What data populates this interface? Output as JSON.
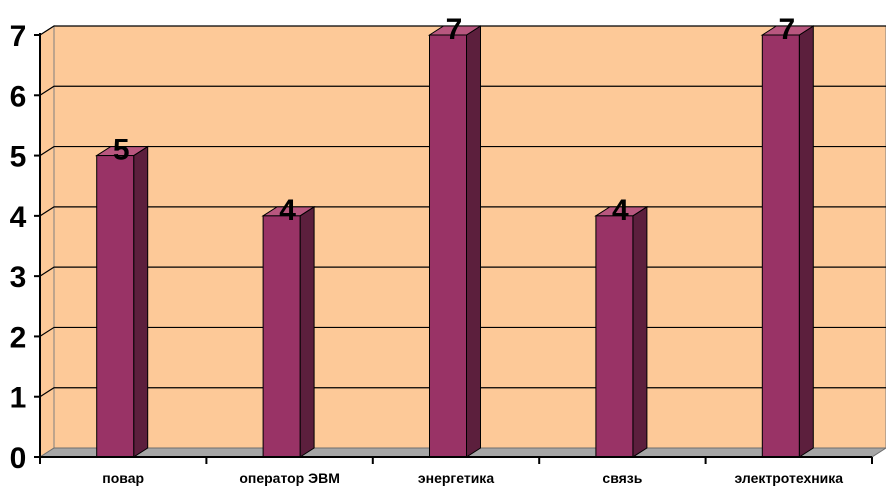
{
  "chart_data": {
    "type": "bar",
    "categories": [
      "повар",
      "оператор ЭВМ",
      "энергетика",
      "связь",
      "электротехника"
    ],
    "values": [
      5,
      4,
      7,
      4,
      7
    ],
    "data_labels": [
      "5",
      "4",
      "7",
      "4",
      "7"
    ],
    "y_ticks": [
      "0",
      "1",
      "2",
      "3",
      "4",
      "5",
      "6",
      "7"
    ],
    "ylim": [
      0,
      7
    ],
    "grid": true,
    "three_d": true,
    "colors": {
      "plot_background": "#fdc998",
      "bar_front": "#993366",
      "bar_side": "#5c1f3d",
      "bar_top": "#b8577f",
      "floor": "#a6a6a6",
      "gridline": "#000000"
    }
  }
}
